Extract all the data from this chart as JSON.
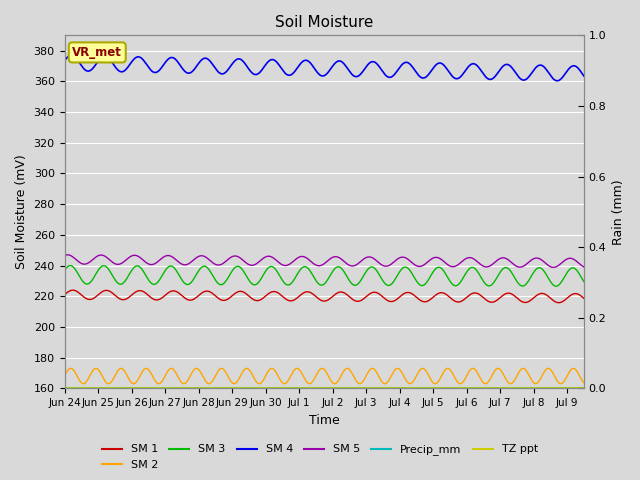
{
  "title": "Soil Moisture",
  "xlabel": "Time",
  "ylabel_left": "Soil Moisture (mV)",
  "ylabel_right": "Rain (mm)",
  "ylim_left": [
    160,
    390
  ],
  "ylim_right": [
    0.0,
    1.0
  ],
  "yticks_left": [
    160,
    180,
    200,
    220,
    240,
    260,
    280,
    300,
    320,
    340,
    360,
    380
  ],
  "yticks_right": [
    0.0,
    0.2,
    0.4,
    0.6,
    0.8,
    1.0
  ],
  "num_days": 15.5,
  "xtick_labels": [
    "Jun 24",
    "Jun 25",
    "Jun 26",
    "Jun 27",
    "Jun 28",
    "Jun 29",
    "Jun 30",
    "Jul 1",
    "Jul 2",
    "Jul 3",
    "Jul 4",
    "Jul 5",
    "Jul 6",
    "Jul 7",
    "Jul 8",
    "Jul 9"
  ],
  "background_color": "#d9d9d9",
  "plot_bg_color": "#d9d9d9",
  "grid_color": "#ffffff",
  "annotation_text": "VR_met",
  "annotation_box_color": "#ffff99",
  "annotation_border_color": "#aaaa00",
  "annotation_text_color": "#8b0000",
  "series": {
    "SM1": {
      "color": "#cc0000",
      "label": "SM 1",
      "base": 221,
      "amplitude": 3,
      "trend": -0.15,
      "period": 1.0,
      "phase": 0.0
    },
    "SM2": {
      "color": "#ffa500",
      "label": "SM 2",
      "base": 168,
      "amplitude": 5,
      "trend": 0.0,
      "period": 0.75,
      "phase": 0.0
    },
    "SM3": {
      "color": "#00bb00",
      "label": "SM 3",
      "base": 234,
      "amplitude": 6,
      "trend": -0.1,
      "period": 1.0,
      "phase": 0.5
    },
    "SM4": {
      "color": "#0000ee",
      "label": "SM 4",
      "base": 372,
      "amplitude": 5,
      "trend": -0.45,
      "period": 1.0,
      "phase": 0.3
    },
    "SM5": {
      "color": "#9900aa",
      "label": "SM 5",
      "base": 244,
      "amplitude": 3,
      "trend": -0.15,
      "period": 1.0,
      "phase": 1.0
    },
    "Precip": {
      "color": "#00bbbb",
      "label": "Precip_mm"
    },
    "TZ_ppt": {
      "color": "#cccc00",
      "label": "TZ ppt"
    }
  },
  "figsize": [
    6.4,
    4.8
  ],
  "dpi": 100
}
